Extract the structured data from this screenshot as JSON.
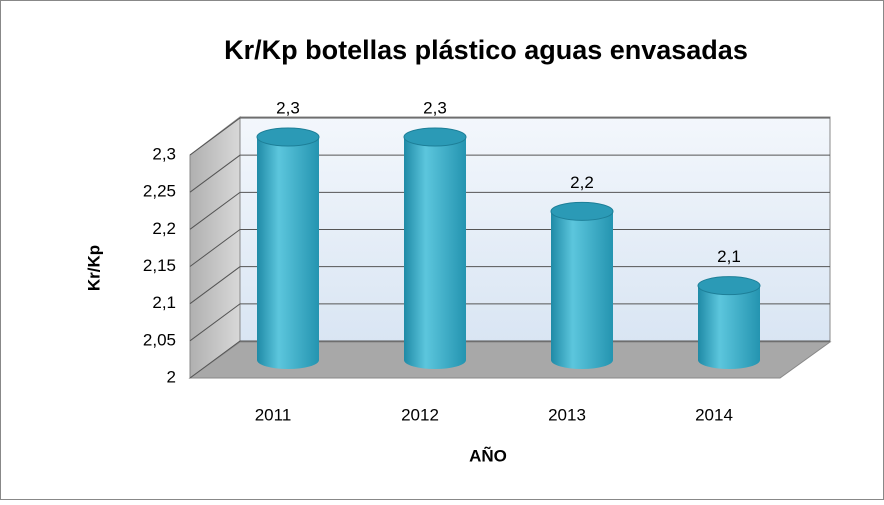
{
  "chart_data": {
    "type": "bar",
    "title": "Kr/Kp botellas plástico aguas envasadas",
    "x_label": "AÑO",
    "y_label": "Kr/Kp",
    "categories": [
      "2011",
      "2012",
      "2013",
      "2014"
    ],
    "values": [
      2.3,
      2.3,
      2.2,
      2.1
    ],
    "value_labels": [
      "2,3",
      "2,3",
      "2,2",
      "2,1"
    ],
    "color": "#31a8c4",
    "ylim": [
      2,
      2.3
    ],
    "yticks": [
      2,
      {
        "value": 2.05,
        "label": "2,05"
      },
      {
        "value": 2.1,
        "label": "2,1"
      },
      {
        "value": 2.15,
        "label": "2,15"
      },
      {
        "value": 2.2,
        "label": "2,2"
      },
      {
        "value": 2.25,
        "label": "2,25"
      },
      {
        "value": 2.3,
        "label": "2,3"
      }
    ],
    "grid": true
  }
}
